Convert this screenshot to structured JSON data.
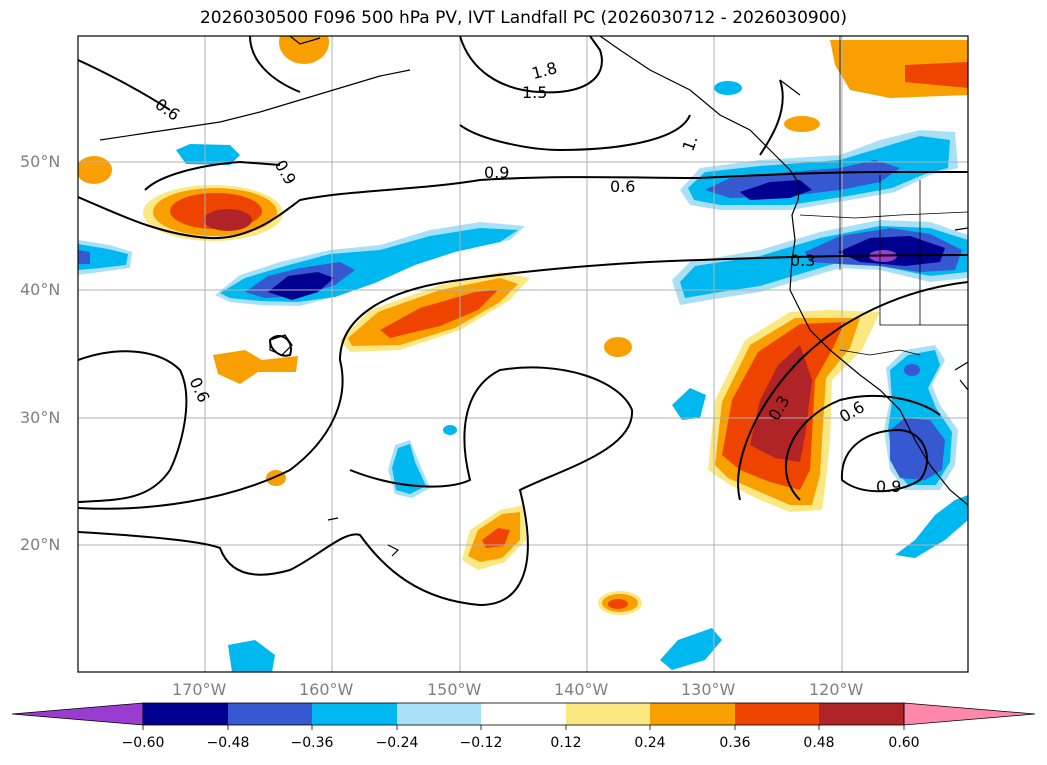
{
  "title": "2026030500 F096 500 hPa PV, IVT Landfall PC (2026030712 - 2026030900)",
  "map": {
    "lat_labels": [
      "50°N",
      "40°N",
      "30°N",
      "20°N"
    ],
    "lon_labels": [
      "170°W",
      "160°W",
      "150°W",
      "140°W",
      "130°W",
      "120°W"
    ],
    "contour_labels": [
      "0.6",
      "0.9",
      "1.8",
      "1.5",
      "1.",
      "0.9",
      "0.6",
      "0.3",
      "0.6",
      "0.3",
      "0.6",
      "0.9"
    ]
  },
  "colorbar": {
    "colors": [
      "#9a3cd0",
      "#000090",
      "#3658d0",
      "#00b8f0",
      "#a8e0f8",
      "#ffffff",
      "#fbe882",
      "#f9a000",
      "#ee4400",
      "#b02428",
      "#ff88aa"
    ],
    "tick_labels": [
      "−0.60",
      "−0.48",
      "−0.36",
      "−0.24",
      "−0.12",
      "0.12",
      "0.24",
      "0.36",
      "0.48",
      "0.60"
    ]
  }
}
